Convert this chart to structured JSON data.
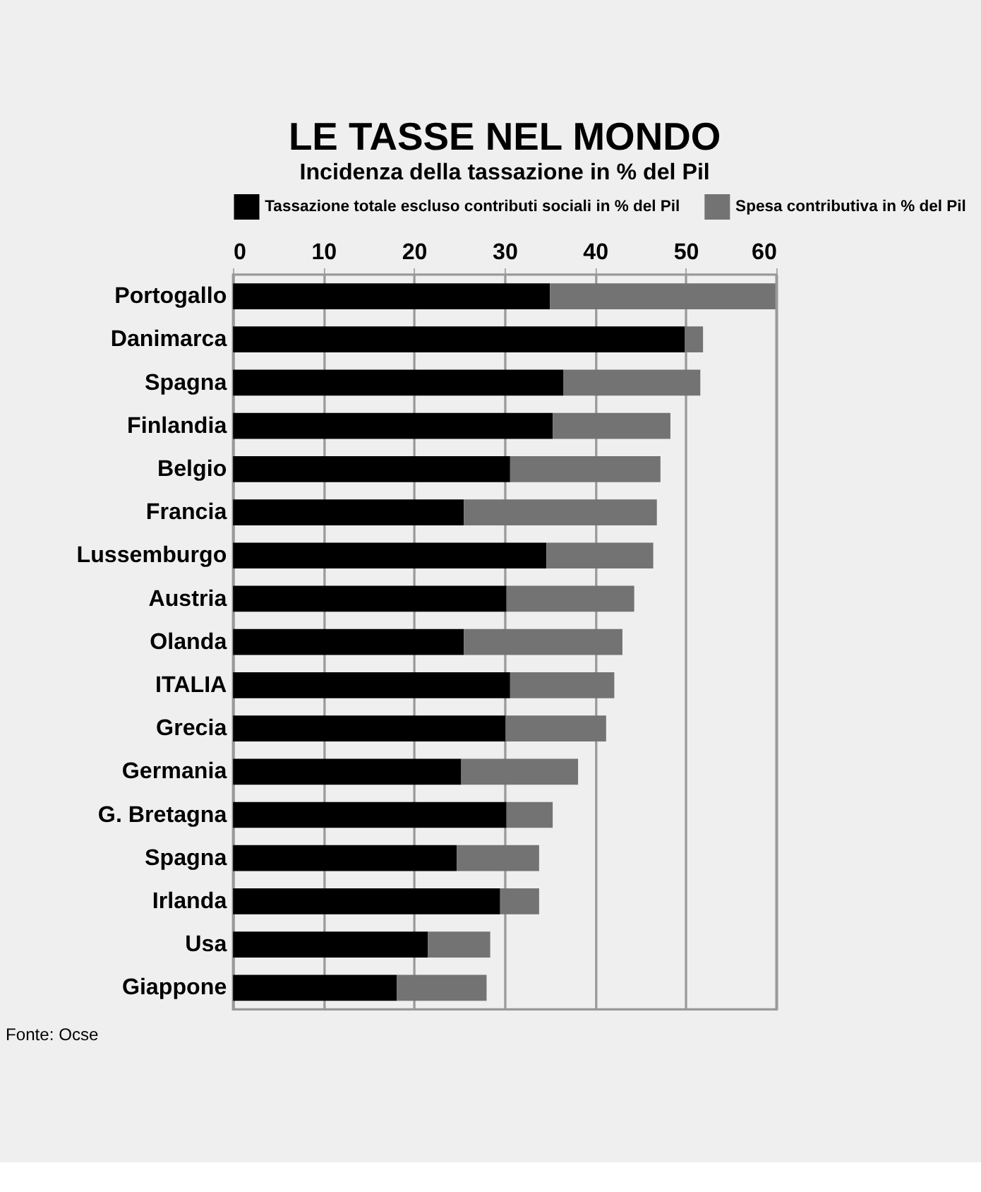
{
  "chart_data": {
    "type": "bar",
    "orientation": "horizontal",
    "stacked": true,
    "title": "LE TASSE NEL MONDO",
    "subtitle": "Incidenza della tassazione in % del Pil",
    "categories": [
      "Portogallo",
      "Danimarca",
      "Spagna",
      "Finlandia",
      "Belgio",
      "Francia",
      "Lussemburgo",
      "Austria",
      "Olanda",
      "ITALIA",
      "Grecia",
      "Germania",
      "G. Bretagna",
      "Spagna",
      "Irlanda",
      "Usa",
      "Giappone"
    ],
    "series": [
      {
        "name": "Tassazione totale escluso contributi sociali in % del Pil",
        "color": "#000000",
        "values": [
          35.0,
          49.9,
          36.5,
          35.3,
          30.6,
          25.5,
          34.6,
          30.2,
          25.5,
          30.6,
          30.1,
          25.2,
          30.2,
          24.7,
          29.5,
          21.5,
          18.1
        ]
      },
      {
        "name": "Spesa contributiva in % del Pil",
        "color": "#737373",
        "values": [
          24.9,
          2.0,
          15.1,
          13.0,
          16.6,
          21.3,
          11.8,
          14.1,
          17.5,
          11.5,
          11.1,
          12.9,
          5.1,
          9.1,
          4.3,
          6.9,
          9.9
        ]
      }
    ],
    "xlim": [
      0,
      60
    ],
    "xticks": [
      0,
      10,
      20,
      30,
      40,
      50,
      60
    ],
    "grid": "x",
    "legend": "top",
    "annotations": [
      "Fonte: Ocse"
    ]
  }
}
